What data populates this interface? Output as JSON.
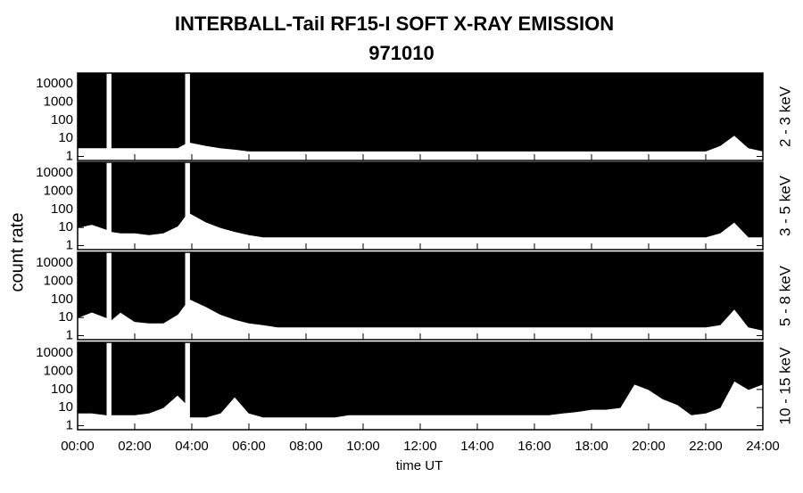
{
  "title": "INTERBALL-Tail RF15-I SOFT X-RAY EMISSION",
  "subtitle": "971010",
  "y_label": "count rate",
  "x_label": "time UT",
  "chart_data": [
    {
      "type": "area",
      "label": "2 - 3 keV",
      "color": "#000000",
      "log_scale": true,
      "xlim": [
        0,
        24
      ],
      "ylim": [
        0.6,
        40000
      ],
      "yticks": [
        1,
        10,
        100,
        1000,
        10000
      ],
      "x": [
        0,
        0.5,
        1,
        1.1,
        1.2,
        1.5,
        2,
        2.5,
        3,
        3.5,
        3.75,
        3.85,
        3.95,
        4.5,
        5,
        5.5,
        6,
        6.5,
        7,
        7.5,
        8,
        8.5,
        9,
        9.5,
        10,
        10.5,
        11,
        11.5,
        12,
        12.5,
        13,
        13.5,
        14,
        14.5,
        15,
        15.5,
        16,
        16.5,
        17,
        17.5,
        18,
        18.5,
        19,
        19.5,
        20,
        20.5,
        21,
        21.5,
        22,
        22.5,
        23,
        23.5,
        24
      ],
      "values": [
        3,
        3,
        3,
        null,
        3,
        3,
        3,
        3,
        3,
        3,
        5,
        null,
        6,
        4,
        3,
        2.5,
        2,
        2,
        2,
        2,
        2,
        2,
        2,
        2,
        2,
        2,
        2,
        2,
        2,
        2,
        2,
        2,
        2,
        2,
        2,
        2,
        2,
        2,
        2,
        2,
        2,
        2,
        2,
        2,
        2,
        2,
        2,
        2,
        2,
        4,
        15,
        3,
        2
      ]
    },
    {
      "type": "area",
      "label": "3 - 5 keV",
      "color": "#000000",
      "log_scale": true,
      "xlim": [
        0,
        24
      ],
      "ylim": [
        0.6,
        40000
      ],
      "yticks": [
        1,
        10,
        100,
        1000,
        10000
      ],
      "x": [
        0,
        0.5,
        1,
        1.1,
        1.2,
        1.5,
        2,
        2.5,
        3,
        3.5,
        3.75,
        3.85,
        3.95,
        4.5,
        5,
        5.5,
        6,
        6.5,
        7,
        7.5,
        8,
        8.5,
        9,
        9.5,
        10,
        10.5,
        11,
        11.5,
        12,
        12.5,
        13,
        13.5,
        14,
        14.5,
        15,
        15.5,
        16,
        16.5,
        17,
        17.5,
        18,
        18.5,
        19,
        19.5,
        20,
        20.5,
        21,
        21.5,
        22,
        22.5,
        23,
        23.5,
        24
      ],
      "values": [
        10,
        15,
        8,
        null,
        6,
        5,
        5,
        4,
        5,
        12,
        40,
        null,
        60,
        20,
        10,
        6,
        4,
        3,
        3,
        3,
        3,
        3,
        3,
        3,
        3,
        3,
        3,
        3,
        3,
        3,
        3,
        3,
        3,
        3,
        3,
        3,
        3,
        3,
        3,
        3,
        3,
        3,
        3,
        3,
        3,
        3,
        3,
        3,
        3,
        5,
        20,
        3,
        3
      ]
    },
    {
      "type": "area",
      "label": "5 - 8 keV",
      "color": "#000000",
      "log_scale": true,
      "xlim": [
        0,
        24
      ],
      "ylim": [
        0.6,
        40000
      ],
      "yticks": [
        1,
        10,
        100,
        1000,
        10000
      ],
      "x": [
        0,
        0.5,
        1,
        1.1,
        1.2,
        1.5,
        2,
        2.5,
        3,
        3.5,
        3.75,
        3.85,
        3.95,
        4.5,
        5,
        5.5,
        6,
        6.5,
        7,
        7.5,
        8,
        8.5,
        9,
        9.5,
        10,
        10.5,
        11,
        11.5,
        12,
        12.5,
        13,
        13.5,
        14,
        14.5,
        15,
        15.5,
        16,
        16.5,
        17,
        17.5,
        18,
        18.5,
        19,
        19.5,
        20,
        20.5,
        21,
        21.5,
        22,
        22.5,
        23,
        23.5,
        24
      ],
      "values": [
        10,
        20,
        10,
        null,
        8,
        20,
        6,
        5,
        5,
        15,
        50,
        null,
        100,
        40,
        15,
        8,
        5,
        4,
        3,
        3,
        3,
        3,
        3,
        3,
        3,
        3,
        3,
        3,
        3,
        3,
        3,
        3,
        3,
        3,
        3,
        3,
        3,
        3,
        3,
        3,
        3,
        3,
        3,
        3,
        3,
        3,
        3,
        3,
        3,
        4,
        30,
        3,
        2
      ]
    },
    {
      "type": "area",
      "label": "10 - 15 keV",
      "color": "#000000",
      "log_scale": true,
      "xlim": [
        0,
        24
      ],
      "ylim": [
        0.6,
        40000
      ],
      "yticks": [
        1,
        10,
        100,
        1000,
        10000
      ],
      "xticks": [
        {
          "value": 0,
          "label": "00:00"
        },
        {
          "value": 2,
          "label": "02:00"
        },
        {
          "value": 4,
          "label": "04:00"
        },
        {
          "value": 6,
          "label": "06:00"
        },
        {
          "value": 8,
          "label": "08:00"
        },
        {
          "value": 10,
          "label": "10:00"
        },
        {
          "value": 12,
          "label": "12:00"
        },
        {
          "value": 14,
          "label": "14:00"
        },
        {
          "value": 16,
          "label": "16:00"
        },
        {
          "value": 18,
          "label": "18:00"
        },
        {
          "value": 20,
          "label": "20:00"
        },
        {
          "value": 22,
          "label": "22:00"
        },
        {
          "value": 24,
          "label": "24:00"
        }
      ],
      "x": [
        0,
        0.5,
        1,
        1.1,
        1.2,
        1.5,
        2,
        2.5,
        3,
        3.5,
        3.75,
        3.85,
        3.95,
        4.5,
        5,
        5.5,
        6,
        6.5,
        7,
        7.5,
        8,
        8.5,
        9,
        9.5,
        10,
        10.5,
        11,
        11.5,
        12,
        12.5,
        13,
        13.5,
        14,
        14.5,
        15,
        15.5,
        16,
        16.5,
        17,
        17.5,
        18,
        18.5,
        19,
        19.5,
        20,
        20.5,
        21,
        21.5,
        22,
        22.5,
        23,
        23.5,
        24
      ],
      "values": [
        5,
        5,
        4,
        null,
        4,
        4,
        4,
        5,
        10,
        50,
        20,
        null,
        3,
        3,
        5,
        40,
        5,
        3,
        3,
        3,
        3,
        3,
        3,
        4,
        4,
        4,
        4,
        4,
        4,
        4,
        4,
        4,
        4,
        4,
        4,
        4,
        4,
        4,
        5,
        6,
        8,
        8,
        10,
        200,
        100,
        30,
        15,
        4,
        5,
        10,
        300,
        100,
        200
      ]
    }
  ]
}
